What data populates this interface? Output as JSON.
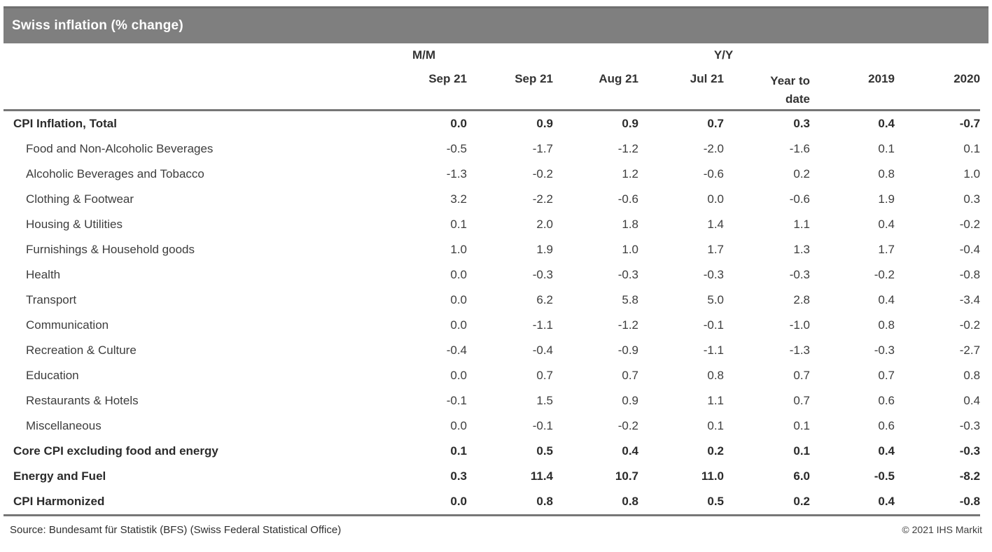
{
  "title": "Swiss inflation (% change)",
  "chart_data": {
    "type": "table",
    "title": "Swiss inflation (% change)",
    "column_groups": [
      {
        "label": "M/M",
        "span": 1
      },
      {
        "label": "Y/Y",
        "span": 6
      }
    ],
    "columns": [
      "Sep 21",
      "Sep 21",
      "Aug 21",
      "Jul 21",
      "Year to date",
      "2019",
      "2020"
    ],
    "rows": [
      {
        "label": "CPI Inflation, Total",
        "bold": true,
        "indent": false,
        "values": [
          "0.0",
          "0.9",
          "0.9",
          "0.7",
          "0.3",
          "0.4",
          "-0.7"
        ]
      },
      {
        "label": "Food and Non-Alcoholic Beverages",
        "bold": false,
        "indent": true,
        "values": [
          "-0.5",
          "-1.7",
          "-1.2",
          "-2.0",
          "-1.6",
          "0.1",
          "0.1"
        ]
      },
      {
        "label": "Alcoholic Beverages and Tobacco",
        "bold": false,
        "indent": true,
        "values": [
          "-1.3",
          "-0.2",
          "1.2",
          "-0.6",
          "0.2",
          "0.8",
          "1.0"
        ]
      },
      {
        "label": "Clothing & Footwear",
        "bold": false,
        "indent": true,
        "values": [
          "3.2",
          "-2.2",
          "-0.6",
          "0.0",
          "-0.6",
          "1.9",
          "0.3"
        ]
      },
      {
        "label": "Housing & Utilities",
        "bold": false,
        "indent": true,
        "values": [
          "0.1",
          "2.0",
          "1.8",
          "1.4",
          "1.1",
          "0.4",
          "-0.2"
        ]
      },
      {
        "label": "Furnishings & Household goods",
        "bold": false,
        "indent": true,
        "values": [
          "1.0",
          "1.9",
          "1.0",
          "1.7",
          "1.3",
          "1.7",
          "-0.4"
        ]
      },
      {
        "label": "Health",
        "bold": false,
        "indent": true,
        "values": [
          "0.0",
          "-0.3",
          "-0.3",
          "-0.3",
          "-0.3",
          "-0.2",
          "-0.8"
        ]
      },
      {
        "label": "Transport",
        "bold": false,
        "indent": true,
        "values": [
          "0.0",
          "6.2",
          "5.8",
          "5.0",
          "2.8",
          "0.4",
          "-3.4"
        ]
      },
      {
        "label": "Communication",
        "bold": false,
        "indent": true,
        "values": [
          "0.0",
          "-1.1",
          "-1.2",
          "-0.1",
          "-1.0",
          "0.8",
          "-0.2"
        ]
      },
      {
        "label": "Recreation & Culture",
        "bold": false,
        "indent": true,
        "values": [
          "-0.4",
          "-0.4",
          "-0.9",
          "-1.1",
          "-1.3",
          "-0.3",
          "-2.7"
        ]
      },
      {
        "label": "Education",
        "bold": false,
        "indent": true,
        "values": [
          "0.0",
          "0.7",
          "0.7",
          "0.8",
          "0.7",
          "0.7",
          "0.8"
        ]
      },
      {
        "label": "Restaurants & Hotels",
        "bold": false,
        "indent": true,
        "values": [
          "-0.1",
          "1.5",
          "0.9",
          "1.1",
          "0.7",
          "0.6",
          "0.4"
        ]
      },
      {
        "label": "Miscellaneous",
        "bold": false,
        "indent": true,
        "values": [
          "0.0",
          "-0.1",
          "-0.2",
          "0.1",
          "0.1",
          "0.6",
          "-0.3"
        ]
      },
      {
        "label": "Core CPI excluding food and energy",
        "bold": true,
        "indent": false,
        "values": [
          "0.1",
          "0.5",
          "0.4",
          "0.2",
          "0.1",
          "0.4",
          "-0.3"
        ]
      },
      {
        "label": "Energy and Fuel",
        "bold": true,
        "indent": false,
        "values": [
          "0.3",
          "11.4",
          "10.7",
          "11.0",
          "6.0",
          "-0.5",
          "-8.2"
        ]
      },
      {
        "label": "CPI Harmonized",
        "bold": true,
        "indent": false,
        "values": [
          "0.0",
          "0.8",
          "0.8",
          "0.5",
          "0.2",
          "0.4",
          "-0.8"
        ]
      }
    ]
  },
  "footer": {
    "source": "Source: Bundesamt für Statistik (BFS) (Swiss Federal Statistical Office)",
    "copyright": "© 2021 IHS Markit"
  },
  "colors": {
    "title_bar_bg": "#7f7f7f",
    "title_bar_border": "#6f6f6f",
    "title_text": "#ffffff",
    "rule_line": "#767676",
    "body_text": "#3d3d3d",
    "bold_text": "#2b2b2b"
  }
}
